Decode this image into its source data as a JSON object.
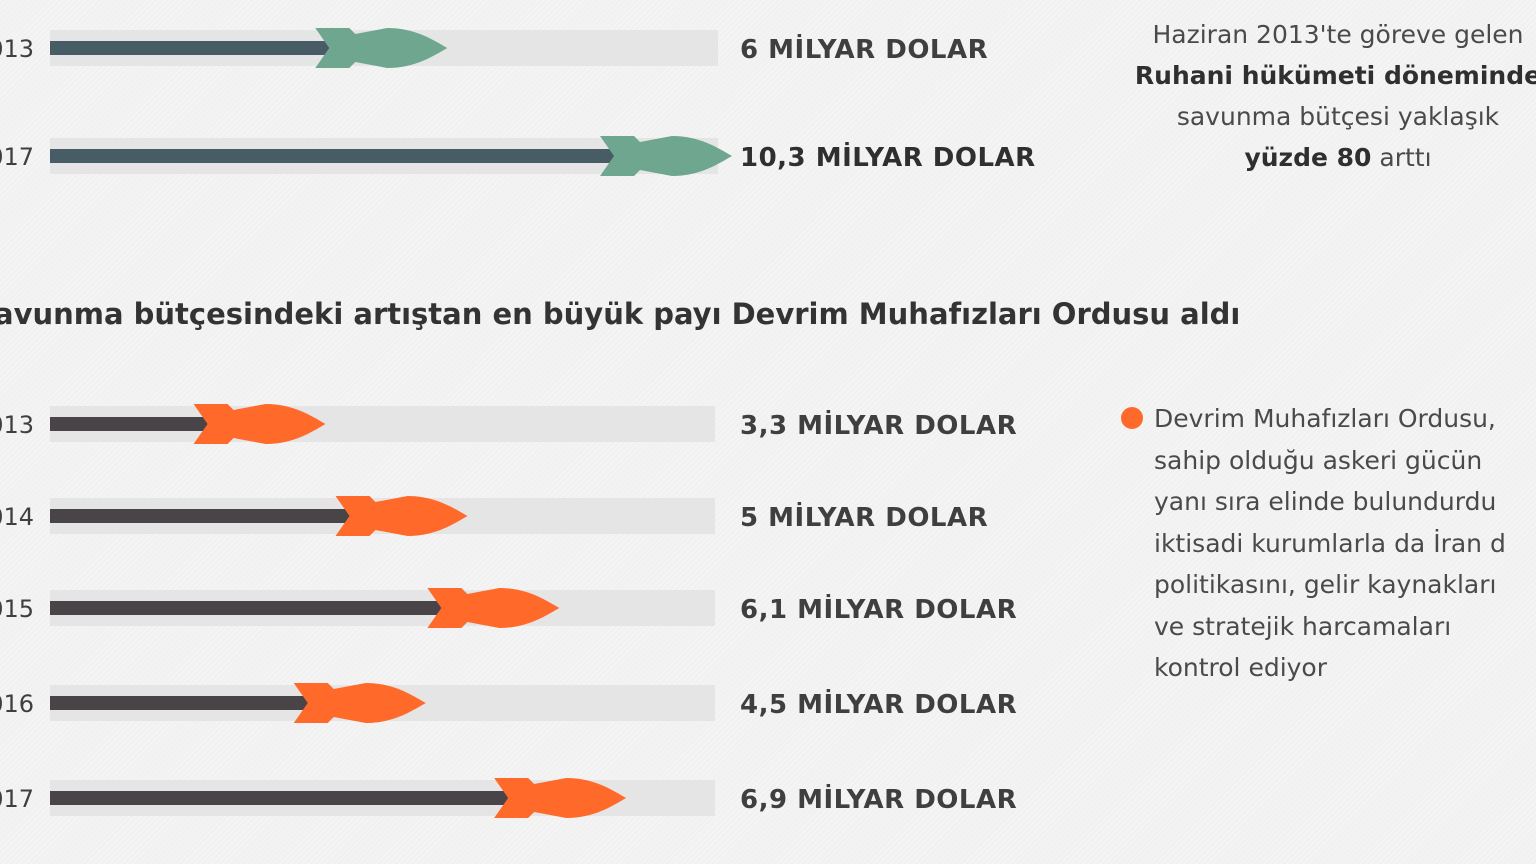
{
  "colors": {
    "track": "#e5e5e5",
    "shaft_top": "#475c64",
    "head_top": "#6fa68f",
    "shaft_bottom": "#484448",
    "head_bottom": "#ff6a2b"
  },
  "heading": "avunma bütçesindeki artıştan en büyük payı Devrim Muhafızları Ordusu aldı",
  "note_top": {
    "line1": "Haziran 2013'te göreve gelen",
    "line2": "Ruhani hükümeti döneminde",
    "line3": "savunma bütçesi yaklaşık",
    "line4_bold": "yüzde 80",
    "line4_rest": " arttı"
  },
  "note_bottom": {
    "lines": [
      "Devrim Muhafızları Ordusu,",
      "sahip olduğu askeri gücün",
      "yanı sıra elinde bulundurdu",
      "iktisadi kurumlarla da İran d",
      "politikasını, gelir kaynakları",
      "ve stratejik harcamaları",
      "kontrol ediyor"
    ]
  },
  "chart_data": [
    {
      "type": "bar",
      "unit": "milyar dolar",
      "categories": [
        "013",
        "017"
      ],
      "values": [
        6,
        10.3
      ],
      "labels": [
        "6 MİLYAR DOLAR",
        "10,3 MİLYAR DOLAR"
      ],
      "bold": [
        false,
        true
      ],
      "xlim": [
        0,
        10.3
      ]
    },
    {
      "type": "bar",
      "unit": "milyar dolar",
      "categories": [
        "013",
        "014",
        "015",
        "016",
        "017"
      ],
      "values": [
        3.3,
        5,
        6.1,
        4.5,
        6.9
      ],
      "labels": [
        "3,3 MİLYAR DOLAR",
        "5 MİLYAR DOLAR",
        "6,1 MİLYAR DOLAR",
        "4,5 MİLYAR DOLAR",
        "6,9 MİLYAR DOLAR"
      ],
      "bold": [
        false,
        false,
        false,
        false,
        false
      ],
      "xlim": [
        0,
        8
      ]
    }
  ]
}
